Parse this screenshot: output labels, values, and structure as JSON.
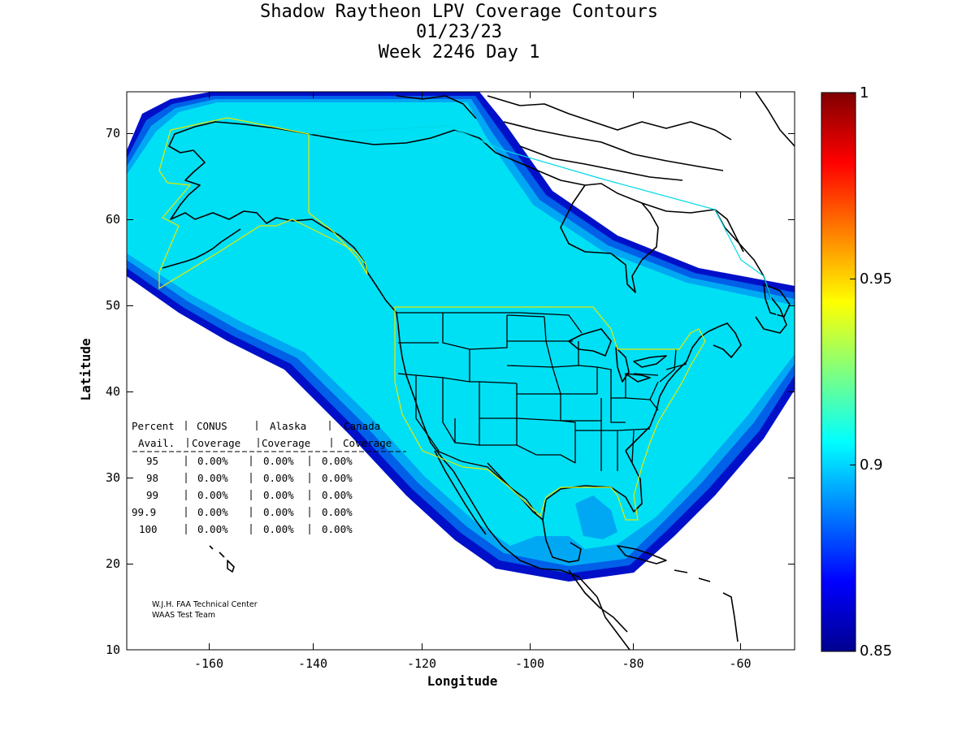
{
  "title": {
    "line1": "Shadow Raytheon LPV Coverage Contours",
    "line2": "01/23/23",
    "line3": "Week 2246 Day 1"
  },
  "axes": {
    "xlabel": "Longitude",
    "ylabel": "Latitude",
    "x_ticks": [
      "-160",
      "-140",
      "-120",
      "-100",
      "-80",
      "-60"
    ],
    "y_ticks": [
      "10",
      "20",
      "30",
      "40",
      "50",
      "60",
      "70"
    ],
    "xlim": [
      -175,
      -50
    ],
    "ylim": [
      10,
      75
    ]
  },
  "colorbar": {
    "range": [
      0.85,
      1.0
    ],
    "ticks": [
      "1",
      "0.95",
      "0.9",
      "0.85"
    ],
    "colormap": "jet"
  },
  "coverage_table": {
    "header1": [
      "Percent",
      "CONUS",
      "Alaska",
      "Canada"
    ],
    "header2": [
      "Avail.",
      "Coverage",
      "Coverage",
      "Coverage"
    ],
    "rows": [
      {
        "percent": "95",
        "conus": "0.00%",
        "alaska": "0.00%",
        "canada": "0.00%"
      },
      {
        "percent": "98",
        "conus": "0.00%",
        "alaska": "0.00%",
        "canada": "0.00%"
      },
      {
        "percent": "99",
        "conus": "0.00%",
        "alaska": "0.00%",
        "canada": "0.00%"
      },
      {
        "percent": "99.9",
        "conus": "0.00%",
        "alaska": "0.00%",
        "canada": "0.00%"
      },
      {
        "percent": "100",
        "conus": "0.00%",
        "alaska": "0.00%",
        "canada": "0.00%"
      }
    ]
  },
  "credit": {
    "line1": "W.J.H. FAA Technical Center",
    "line2": "WAAS Test Team"
  },
  "colors": {
    "coverage_main": "#00e0f4",
    "coverage_mid": "#00a8f4",
    "coverage_edge": "#0060e8",
    "coverage_outer": "#0010c8",
    "coastline": "#000000",
    "conus_boundary": "#e8e800",
    "canada_boundary": "#00d8e8"
  }
}
